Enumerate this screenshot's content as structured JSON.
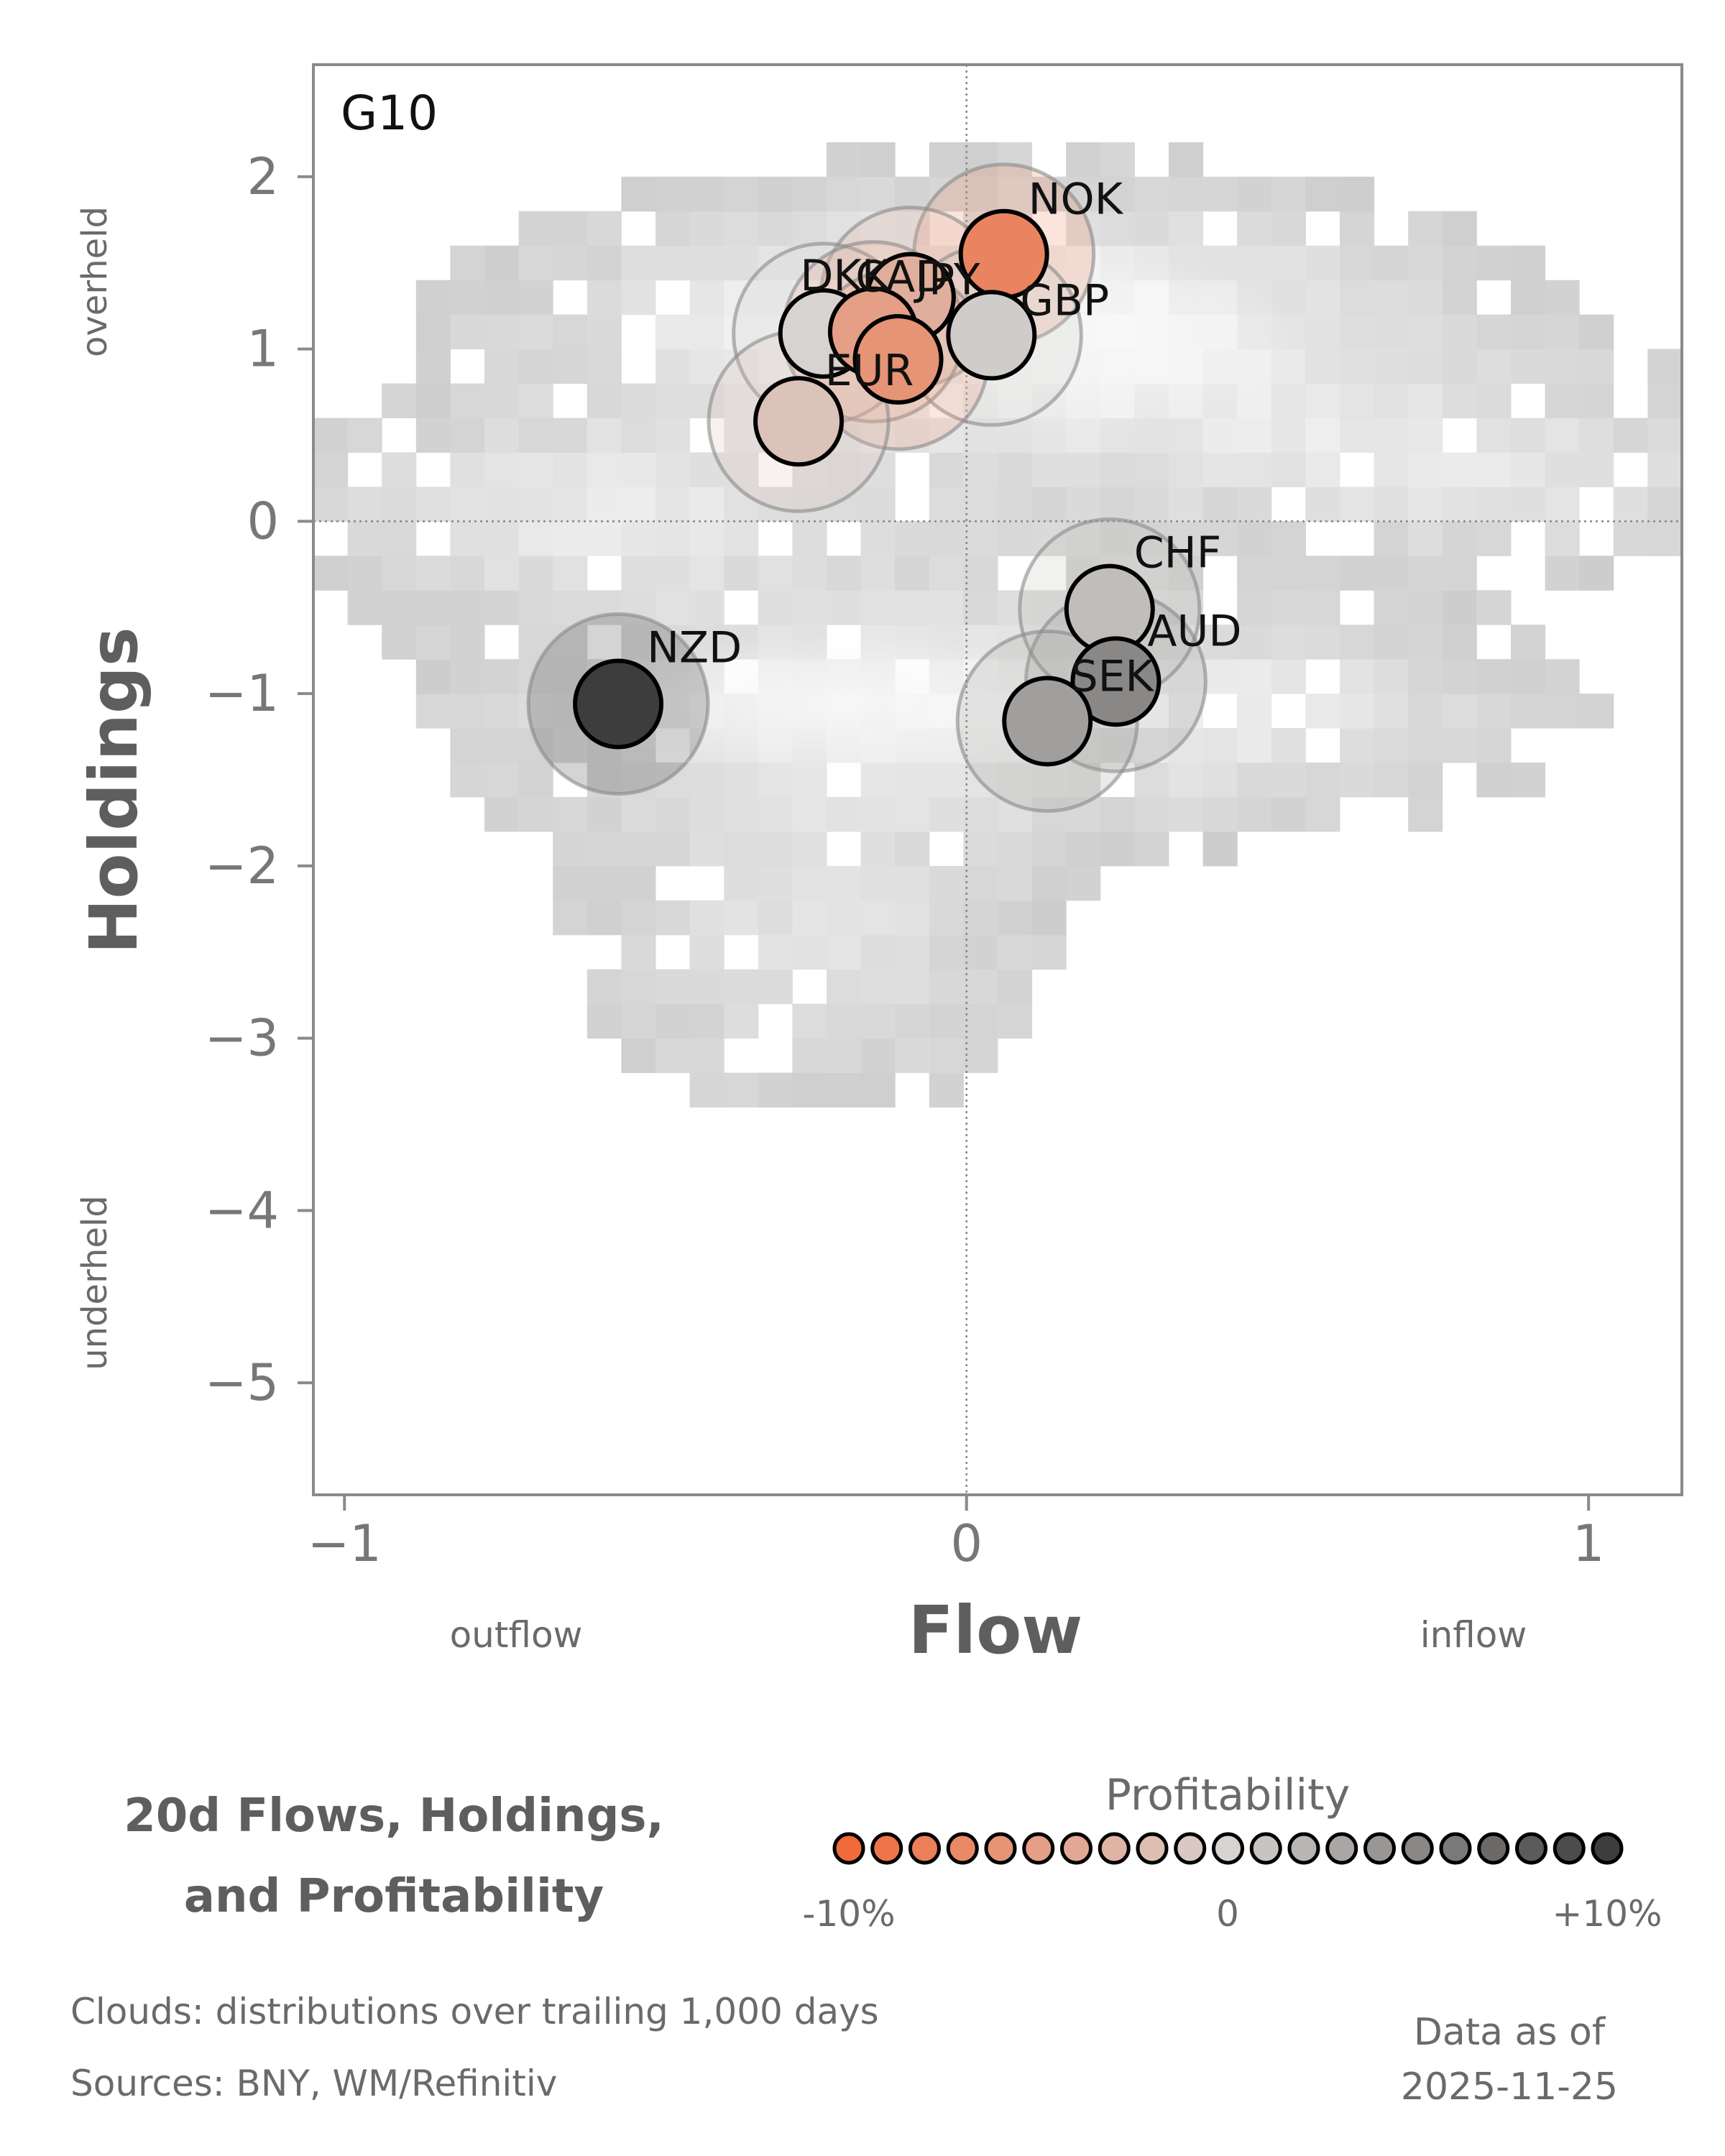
{
  "chart_data": {
    "type": "scatter",
    "panel_label": "G10",
    "xlabel": "Flow",
    "ylabel": "Holdings",
    "xlim": [
      -1.05,
      1.15
    ],
    "ylim": [
      -5.65,
      2.65
    ],
    "x_ticks": [
      -1,
      0,
      1
    ],
    "y_ticks": [
      2,
      1,
      0,
      -1,
      -2,
      -3,
      -4,
      -5
    ],
    "x_tick_labels": [
      "−1",
      "0",
      "1"
    ],
    "y_tick_labels": [
      "2",
      "1",
      "0",
      "−1",
      "−2",
      "−3",
      "−4",
      "−5"
    ],
    "x_annotations": {
      "left": "outflow",
      "right": "inflow"
    },
    "y_annotations": {
      "top": "overheld",
      "bottom": "underheld"
    },
    "reference_lines": {
      "x": 0,
      "y": 0,
      "style": "dotted"
    },
    "background": "grey 2D histogram clouds of trailing distributions",
    "points": [
      {
        "label": "NOK",
        "x": 0.06,
        "y": 1.55,
        "profitability": -7.5
      },
      {
        "label": "CAD",
        "x": -0.09,
        "y": 1.3,
        "profitability": -3.5
      },
      {
        "label": "GBP",
        "x": 0.04,
        "y": 1.08,
        "profitability": 0.5
      },
      {
        "label": "DKK",
        "x": -0.23,
        "y": 1.09,
        "profitability": 0.0
      },
      {
        "label": "JPY",
        "x": -0.15,
        "y": 1.1,
        "profitability": -5.0
      },
      {
        "label": "EUR",
        "x": -0.11,
        "y": 0.94,
        "profitability": -6.0
      },
      {
        "label": "",
        "x": -0.27,
        "y": 0.58,
        "profitability": -1.5
      },
      {
        "label": "CHF",
        "x": 0.23,
        "y": -0.51,
        "profitability": 1.5
      },
      {
        "label": "AUD",
        "x": 0.24,
        "y": -0.93,
        "profitability": 5.0
      },
      {
        "label": "SEK",
        "x": 0.13,
        "y": -1.16,
        "profitability": 3.5
      },
      {
        "label": "NZD",
        "x": -0.56,
        "y": -1.06,
        "profitability": 10.0
      }
    ],
    "legend": {
      "title": "Profitability",
      "tick_labels": [
        "-10%",
        "0",
        "+10%"
      ],
      "range": [
        -10,
        10
      ],
      "steps": 21,
      "color_low": "#f06a3a",
      "color_mid": "#d7d3d1",
      "color_high": "#3d3d3d"
    }
  },
  "chart_title_line1": "20d Flows, Holdings,",
  "chart_title_line2": "and Profitability",
  "footnote_clouds": "Clouds:  distributions over trailing 1,000 days",
  "footnote_sources": "Sources:  BNY, WM/Refinitiv",
  "as_of_label": "Data as of",
  "as_of_date": "2025-11-25"
}
